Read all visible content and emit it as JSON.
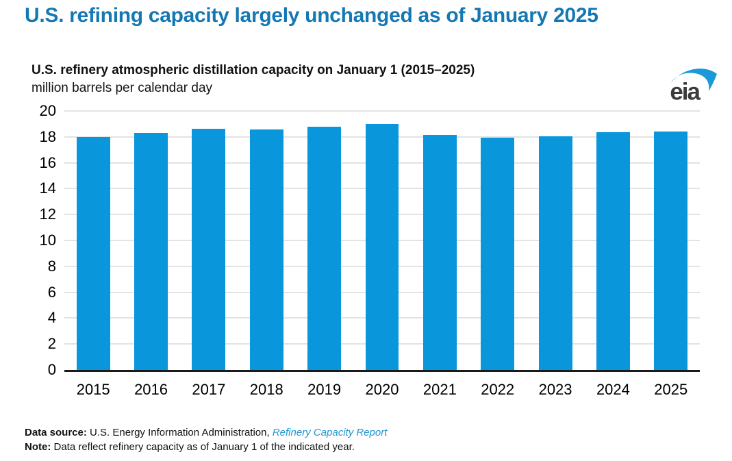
{
  "header": {
    "title": "U.S. refining capacity largely unchanged as of January 2025"
  },
  "chart": {
    "title": "U.S. refinery atmospheric distillation capacity on January 1 (2015–2025)",
    "subtitle": "million barrels per calendar day"
  },
  "logo": {
    "text": "eia",
    "text_color": "#3b3b3b",
    "swoosh_color": "#1a9ad8"
  },
  "chart_data": {
    "type": "bar",
    "title": "U.S. refinery atmospheric distillation capacity on January 1 (2015–2025)",
    "ylabel": "million barrels per calendar day",
    "xlabel": "",
    "categories": [
      "2015",
      "2016",
      "2017",
      "2018",
      "2019",
      "2020",
      "2021",
      "2022",
      "2023",
      "2024",
      "2025"
    ],
    "values": [
      17.97,
      18.32,
      18.62,
      18.57,
      18.8,
      18.98,
      18.13,
      17.94,
      18.06,
      18.38,
      18.4
    ],
    "ylim": [
      0,
      20
    ],
    "yticks": [
      0,
      2,
      4,
      6,
      8,
      10,
      12,
      14,
      16,
      18,
      20
    ],
    "grid": true,
    "legend": false,
    "colors": {
      "bar": "#0996db",
      "gridline": "#e3e3e3",
      "axis": "#1a1a1a",
      "headline": "#1478b4",
      "link": "#2196d1"
    }
  },
  "footer": {
    "source_label": "Data source:",
    "source_text": " U.S. Energy Information Administration, ",
    "source_link": "Refinery Capacity Report",
    "note_label": "Note:",
    "note_text": " Data reflect refinery capacity as of January 1 of the indicated year."
  }
}
